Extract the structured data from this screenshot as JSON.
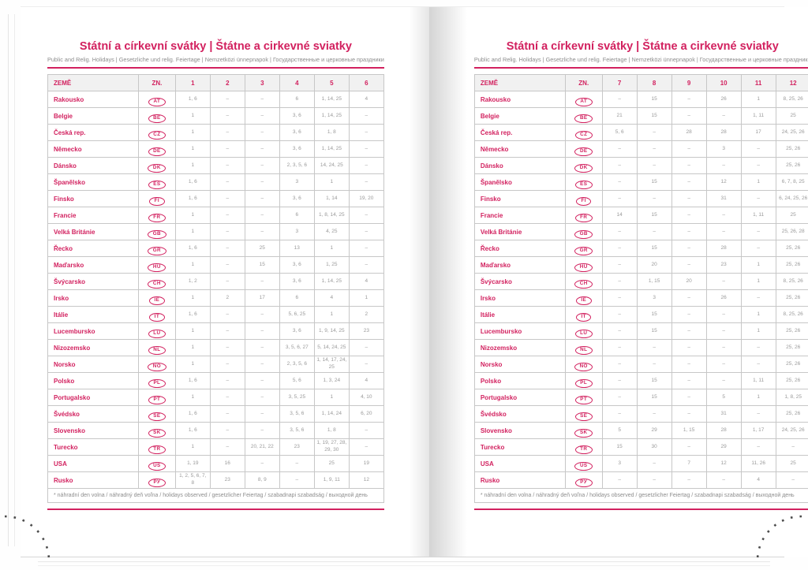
{
  "accent_color": "#d2215f",
  "title": "Státní a církevní svátky | Štátne a cirkevné sviatky",
  "subtitle": "Public and Relig. Holidays | Gesetzliche und relig. Feiertage | Nemzetközi ünnepnapok | Государственные и церковные праздники",
  "table": {
    "country_header": "ZEMĚ",
    "code_header": "ZN.",
    "footnote": "* náhradní den volna / náhradný deň voľna / holidays observed / gesetzlicher Feiertag / szabadnapi szabadság / выходной день"
  },
  "countries": [
    {
      "name": "Rakousko",
      "code": "AT"
    },
    {
      "name": "Belgie",
      "code": "BE"
    },
    {
      "name": "Česká rep.",
      "code": "CZ"
    },
    {
      "name": "Německo",
      "code": "DE"
    },
    {
      "name": "Dánsko",
      "code": "DK"
    },
    {
      "name": "Španělsko",
      "code": "ES"
    },
    {
      "name": "Finsko",
      "code": "FI"
    },
    {
      "name": "Francie",
      "code": "FR"
    },
    {
      "name": "Velká Británie",
      "code": "GB"
    },
    {
      "name": "Řecko",
      "code": "GR"
    },
    {
      "name": "Maďarsko",
      "code": "HU"
    },
    {
      "name": "Švýcarsko",
      "code": "CH"
    },
    {
      "name": "Irsko",
      "code": "IE"
    },
    {
      "name": "Itálie",
      "code": "IT"
    },
    {
      "name": "Lucembursko",
      "code": "LU"
    },
    {
      "name": "Nizozemsko",
      "code": "NL"
    },
    {
      "name": "Norsko",
      "code": "NO"
    },
    {
      "name": "Polsko",
      "code": "PL"
    },
    {
      "name": "Portugalsko",
      "code": "PT"
    },
    {
      "name": "Švédsko",
      "code": "SE"
    },
    {
      "name": "Slovensko",
      "code": "SK"
    },
    {
      "name": "Turecko",
      "code": "TR"
    },
    {
      "name": "USA",
      "code": "US"
    },
    {
      "name": "Rusko",
      "code": "РУ"
    }
  ],
  "pages": [
    {
      "side": "left",
      "months": [
        "1",
        "2",
        "3",
        "4",
        "5",
        "6"
      ],
      "values": [
        [
          "1, 6",
          "–",
          "–",
          "6",
          "1, 14, 25",
          "4"
        ],
        [
          "1",
          "–",
          "–",
          "3, 6",
          "1, 14, 25",
          "–"
        ],
        [
          "1",
          "–",
          "–",
          "3, 6",
          "1, 8",
          "–"
        ],
        [
          "1",
          "–",
          "–",
          "3, 6",
          "1, 14, 25",
          "–"
        ],
        [
          "1",
          "–",
          "–",
          "2, 3, 5, 6",
          "14, 24, 25",
          "–"
        ],
        [
          "1, 6",
          "–",
          "–",
          "3",
          "1",
          "–"
        ],
        [
          "1, 6",
          "–",
          "–",
          "3, 6",
          "1, 14",
          "19, 20"
        ],
        [
          "1",
          "–",
          "–",
          "6",
          "1, 8, 14, 25",
          "–"
        ],
        [
          "1",
          "–",
          "–",
          "3",
          "4, 25",
          "–"
        ],
        [
          "1, 6",
          "–",
          "25",
          "13",
          "1",
          "–"
        ],
        [
          "1",
          "–",
          "15",
          "3, 6",
          "1, 25",
          "–"
        ],
        [
          "1, 2",
          "–",
          "–",
          "3, 6",
          "1, 14, 25",
          "4"
        ],
        [
          "1",
          "2",
          "17",
          "6",
          "4",
          "1"
        ],
        [
          "1, 6",
          "–",
          "–",
          "5, 6, 25",
          "1",
          "2"
        ],
        [
          "1",
          "–",
          "–",
          "3, 6",
          "1, 9, 14, 25",
          "23"
        ],
        [
          "1",
          "–",
          "–",
          "3, 5, 6, 27",
          "5, 14, 24, 25",
          "–"
        ],
        [
          "1",
          "–",
          "–",
          "2, 3, 5, 6",
          "1, 14, 17, 24, 25",
          "–"
        ],
        [
          "1, 6",
          "–",
          "–",
          "5, 6",
          "1, 3, 24",
          "4"
        ],
        [
          "1",
          "–",
          "–",
          "3, 5, 25",
          "1",
          "4, 10"
        ],
        [
          "1, 6",
          "–",
          "–",
          "3, 5, 6",
          "1, 14, 24",
          "6, 20"
        ],
        [
          "1, 6",
          "–",
          "–",
          "3, 5, 6",
          "1, 8",
          "–"
        ],
        [
          "1",
          "–",
          "20, 21, 22",
          "23",
          "1, 19, 27, 28, 29, 30",
          "–"
        ],
        [
          "1, 19",
          "16",
          "–",
          "–",
          "25",
          "19"
        ],
        [
          "1, 2, 5, 6, 7, 8",
          "23",
          "8, 9",
          "–",
          "1, 9, 11",
          "12"
        ]
      ]
    },
    {
      "side": "right",
      "months": [
        "7",
        "8",
        "9",
        "10",
        "11",
        "12"
      ],
      "values": [
        [
          "–",
          "15",
          "–",
          "26",
          "1",
          "8, 25, 26"
        ],
        [
          "21",
          "15",
          "–",
          "–",
          "1, 11",
          "25"
        ],
        [
          "5, 6",
          "–",
          "28",
          "28",
          "17",
          "24, 25, 26"
        ],
        [
          "–",
          "–",
          "–",
          "3",
          "–",
          "25, 26"
        ],
        [
          "–",
          "–",
          "–",
          "–",
          "–",
          "25, 26"
        ],
        [
          "–",
          "15",
          "–",
          "12",
          "1",
          "6, 7, 8, 25"
        ],
        [
          "–",
          "–",
          "–",
          "31",
          "–",
          "6, 24, 25, 26"
        ],
        [
          "14",
          "15",
          "–",
          "–",
          "1, 11",
          "25"
        ],
        [
          "–",
          "–",
          "–",
          "–",
          "–",
          "25, 26, 28"
        ],
        [
          "–",
          "15",
          "–",
          "28",
          "–",
          "25, 26"
        ],
        [
          "–",
          "20",
          "–",
          "23",
          "1",
          "25, 26"
        ],
        [
          "–",
          "1, 15",
          "20",
          "–",
          "1",
          "8, 25, 26"
        ],
        [
          "–",
          "3",
          "–",
          "26",
          "–",
          "25, 26"
        ],
        [
          "–",
          "15",
          "–",
          "–",
          "1",
          "8, 25, 26"
        ],
        [
          "–",
          "15",
          "–",
          "–",
          "1",
          "25, 26"
        ],
        [
          "–",
          "–",
          "–",
          "–",
          "–",
          "25, 26"
        ],
        [
          "–",
          "–",
          "–",
          "–",
          "–",
          "25, 26"
        ],
        [
          "–",
          "15",
          "–",
          "–",
          "1, 11",
          "25, 26"
        ],
        [
          "–",
          "15",
          "–",
          "5",
          "1",
          "1, 8, 25"
        ],
        [
          "–",
          "–",
          "–",
          "31",
          "–",
          "25, 26"
        ],
        [
          "5",
          "29",
          "1, 15",
          "28",
          "1, 17",
          "24, 25, 26"
        ],
        [
          "15",
          "30",
          "–",
          "29",
          "–",
          "–"
        ],
        [
          "3",
          "–",
          "7",
          "12",
          "11, 26",
          "25"
        ],
        [
          "–",
          "–",
          "–",
          "–",
          "4",
          "–"
        ]
      ]
    }
  ]
}
